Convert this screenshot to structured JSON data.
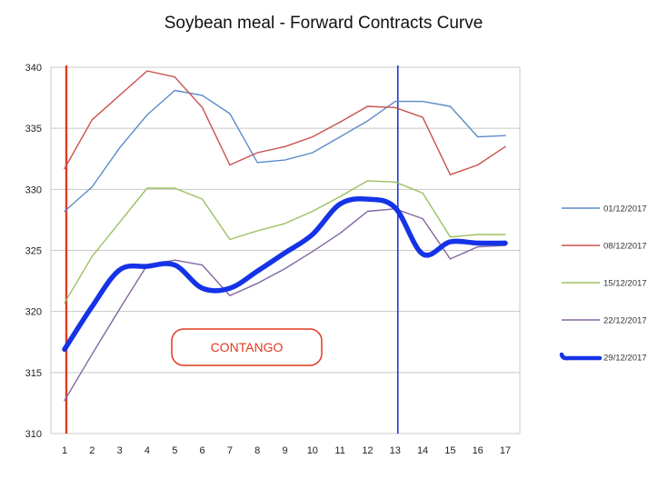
{
  "chart_data": {
    "type": "line",
    "title": "Soybean meal - Forward Contracts Curve",
    "xlabel": "",
    "ylabel": "",
    "x": [
      1,
      2,
      3,
      4,
      5,
      6,
      7,
      8,
      9,
      10,
      11,
      12,
      13,
      14,
      15,
      16,
      17
    ],
    "ylim": [
      310,
      340
    ],
    "yticks": [
      310,
      315,
      320,
      325,
      330,
      335,
      340
    ],
    "grid": "horizontal",
    "legend_position": "right",
    "series": [
      {
        "name": "01/12/2017",
        "color": "#5b8bc9",
        "width": 1.4,
        "values": [
          328.2,
          330.2,
          333.4,
          336.1,
          338.1,
          337.7,
          336.2,
          332.2,
          332.4,
          333.0,
          334.3,
          335.6,
          337.2,
          337.2,
          336.8,
          334.3,
          334.4
        ]
      },
      {
        "name": "08/12/2017",
        "color": "#c9514c",
        "width": 1.4,
        "values": [
          331.7,
          335.7,
          337.7,
          339.7,
          339.2,
          336.7,
          332.0,
          333.0,
          333.5,
          334.3,
          335.5,
          336.8,
          336.7,
          335.9,
          331.2,
          332.0,
          333.5
        ]
      },
      {
        "name": "15/12/2017",
        "color": "#9bc060",
        "width": 1.4,
        "values": [
          320.7,
          324.5,
          327.3,
          330.1,
          330.1,
          329.2,
          325.9,
          326.6,
          327.2,
          328.2,
          329.4,
          330.7,
          330.6,
          329.7,
          326.1,
          326.3,
          326.3
        ]
      },
      {
        "name": "22/12/2017",
        "color": "#8266a2",
        "width": 1.4,
        "values": [
          312.7,
          316.5,
          320.2,
          323.8,
          324.2,
          323.8,
          321.3,
          322.3,
          323.5,
          324.9,
          326.4,
          328.2,
          328.4,
          327.6,
          324.3,
          325.3,
          325.4
        ]
      },
      {
        "name": "29/12/2017",
        "color": "#1533e6",
        "width": 5.5,
        "values": [
          316.9,
          320.4,
          323.4,
          323.7,
          323.8,
          321.9,
          321.9,
          323.3,
          324.8,
          326.3,
          328.8,
          329.2,
          328.5,
          324.7,
          325.7,
          325.6,
          325.6
        ]
      }
    ],
    "vertical_markers": [
      {
        "x": 1,
        "color": "#e03a1e"
      },
      {
        "x": 13,
        "color": "#1c34d0"
      }
    ],
    "annotation": {
      "text": "CONTANGO",
      "color": "#e03a1e"
    }
  }
}
